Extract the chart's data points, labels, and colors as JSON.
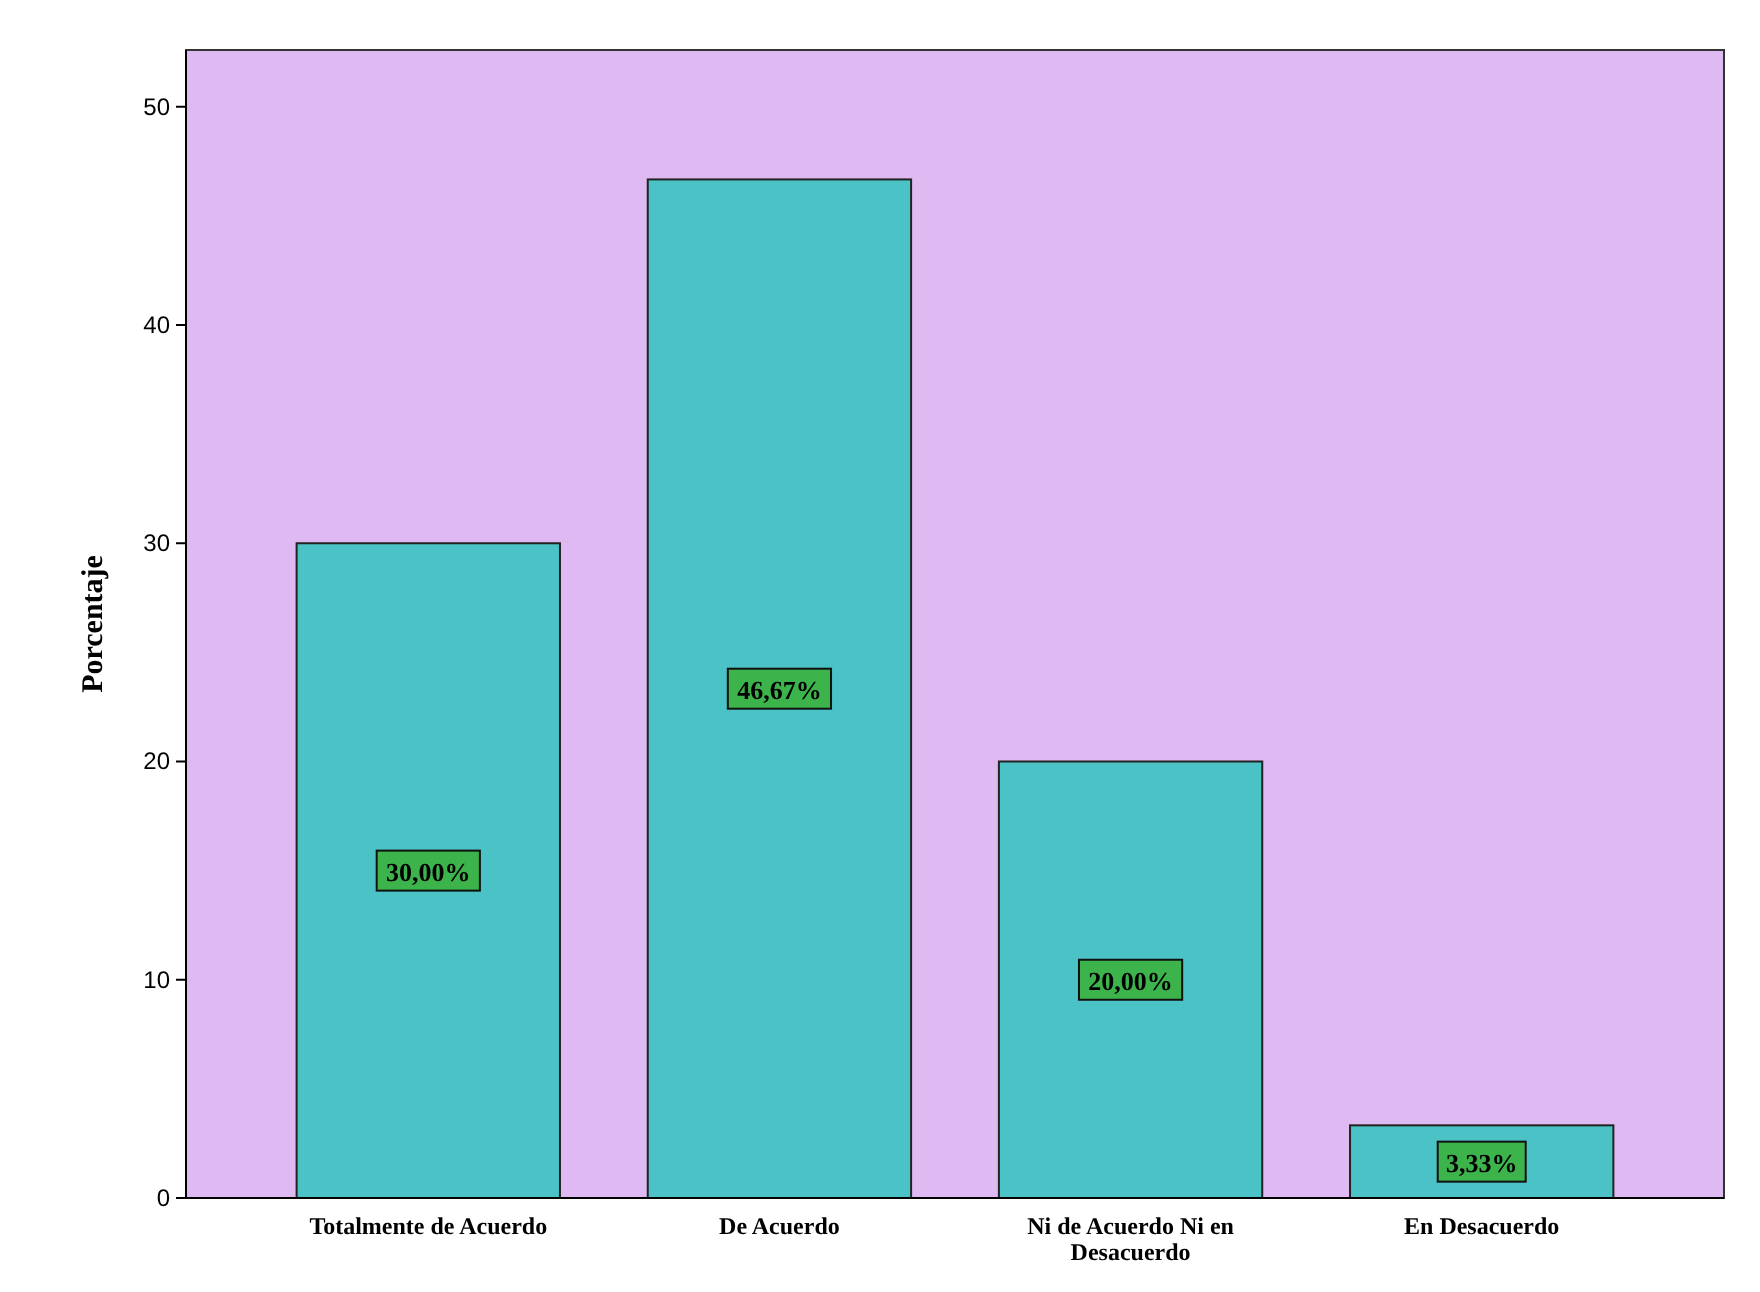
{
  "chart_data": {
    "type": "bar",
    "ylabel": "Porcentaje",
    "categories": [
      "Totalmente de Acuerdo",
      "De Acuerdo",
      "Ni de Acuerdo Ni en Desacuerdo",
      "En Desacuerdo"
    ],
    "values": [
      30,
      46.67,
      20,
      3.33
    ],
    "value_labels": [
      "30,00%",
      "46,67%",
      "20,00%",
      "3,33%"
    ],
    "color": "#4bc2c5",
    "ylim": [
      0,
      52.6
    ],
    "yticks": [
      0,
      10,
      20,
      30,
      40,
      50
    ],
    "grid": false
  }
}
